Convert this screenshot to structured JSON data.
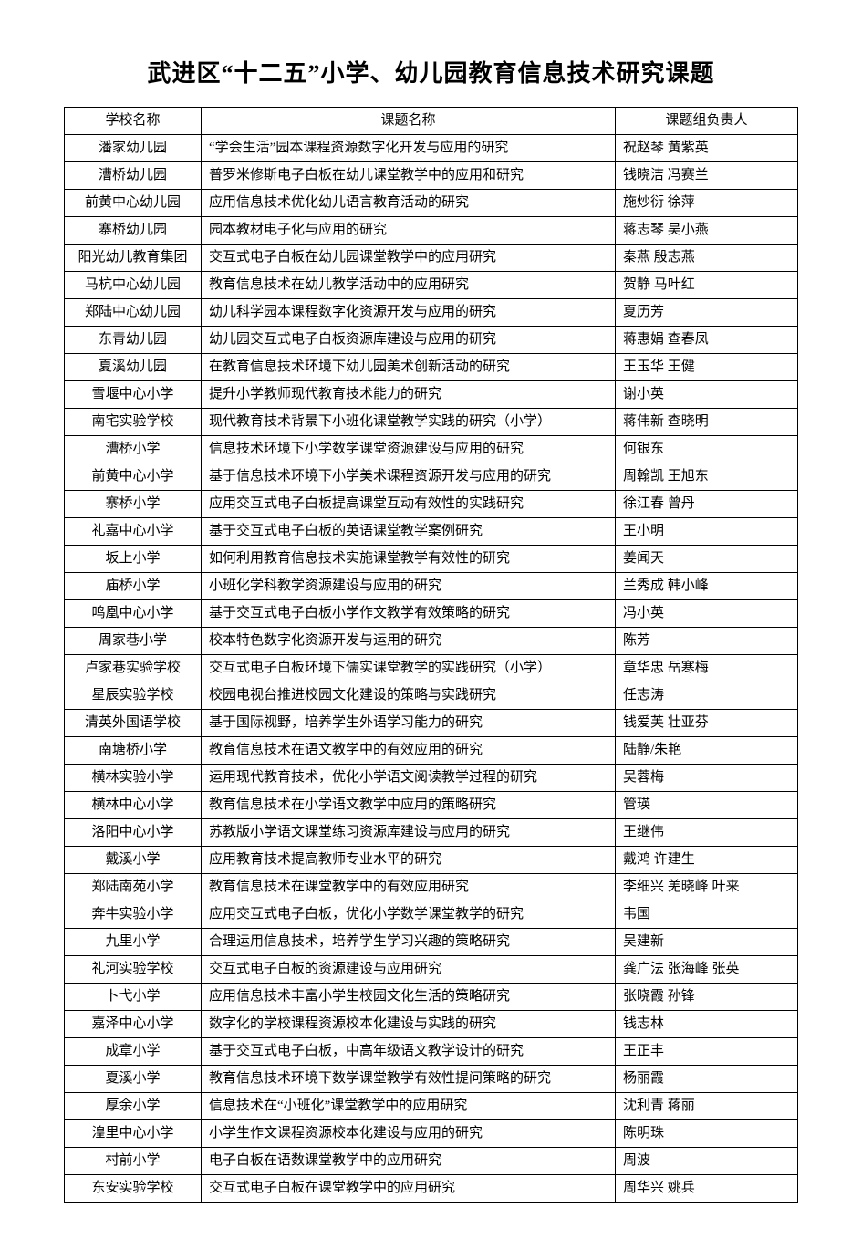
{
  "title": "武进区“十二五”小学、幼儿园教育信息技术研究课题",
  "columns": [
    "学校名称",
    "课题名称",
    "课题组负责人"
  ],
  "rows": [
    [
      "潘家幼儿园",
      "“学会生活”园本课程资源数字化开发与应用的研究",
      "祝赵琴  黄紫英"
    ],
    [
      "漕桥幼儿园",
      "普罗米修斯电子白板在幼儿课堂教学中的应用和研究",
      "钱晓洁  冯赛兰"
    ],
    [
      "前黄中心幼儿园",
      "应用信息技术优化幼儿语言教育活动的研究",
      "施炒衍  徐萍"
    ],
    [
      "寨桥幼儿园",
      "园本教材电子化与应用的研究",
      "蒋志琴  吴小燕"
    ],
    [
      "阳光幼儿教育集团",
      "交互式电子白板在幼儿园课堂教学中的应用研究",
      "秦燕  殷志燕"
    ],
    [
      "马杭中心幼儿园",
      "教育信息技术在幼儿教学活动中的应用研究",
      "贺静  马叶红"
    ],
    [
      "郑陆中心幼儿园",
      "幼儿科学园本课程数字化资源开发与应用的研究",
      "夏历芳"
    ],
    [
      "东青幼儿园",
      "幼儿园交互式电子白板资源库建设与应用的研究",
      "蒋惠娟  查春凤"
    ],
    [
      "夏溪幼儿园",
      "在教育信息技术环境下幼儿园美术创新活动的研究",
      "王玉华  王健"
    ],
    [
      "雪堰中心小学",
      "提升小学教师现代教育技术能力的研究",
      "谢小英"
    ],
    [
      "南宅实验学校",
      "现代教育技术背景下小班化课堂教学实践的研究（小学）",
      "蒋伟新  查晓明"
    ],
    [
      "漕桥小学",
      "信息技术环境下小学数学课堂资源建设与应用的研究",
      "何银东"
    ],
    [
      "前黄中心小学",
      "基于信息技术环境下小学美术课程资源开发与应用的研究",
      "周翰凯  王旭东"
    ],
    [
      "寨桥小学",
      "应用交互式电子白板提高课堂互动有效性的实践研究",
      "徐江春  曾丹"
    ],
    [
      "礼嘉中心小学",
      "基于交互式电子白板的英语课堂教学案例研究",
      "王小明"
    ],
    [
      "坂上小学",
      "如何利用教育信息技术实施课堂教学有效性的研究",
      "姜闻天"
    ],
    [
      "庙桥小学",
      "小班化学科教学资源建设与应用的研究",
      "兰秀成  韩小峰"
    ],
    [
      "鸣凰中心小学",
      "基于交互式电子白板小学作文教学有效策略的研究",
      "冯小英"
    ],
    [
      "周家巷小学",
      "校本特色数字化资源开发与运用的研究",
      "陈芳"
    ],
    [
      "卢家巷实验学校",
      "交互式电子白板环境下儒实课堂教学的实践研究（小学）",
      "章华忠  岳寒梅"
    ],
    [
      "星辰实验学校",
      "校园电视台推进校园文化建设的策略与实践研究",
      "任志涛"
    ],
    [
      "清英外国语学校",
      "基于国际视野，培养学生外语学习能力的研究",
      "钱爱芙  壮亚芬"
    ],
    [
      "南塘桥小学",
      "教育信息技术在语文教学中的有效应用的研究",
      "陆静/朱艳"
    ],
    [
      "横林实验小学",
      "运用现代教育技术，优化小学语文阅读教学过程的研究",
      "吴蓉梅"
    ],
    [
      "横林中心小学",
      "教育信息技术在小学语文教学中应用的策略研究",
      "管瑛"
    ],
    [
      "洛阳中心小学",
      "苏教版小学语文课堂练习资源库建设与应用的研究",
      "王继伟"
    ],
    [
      "戴溪小学",
      "应用教育技术提高教师专业水平的研究",
      "戴鸿  许建生"
    ],
    [
      "郑陆南苑小学",
      "教育信息技术在课堂教学中的有效应用研究",
      "李细兴  羌晓峰  叶来"
    ],
    [
      "奔牛实验小学",
      "应用交互式电子白板，优化小学数学课堂教学的研究",
      "韦国"
    ],
    [
      "九里小学",
      "合理运用信息技术，培养学生学习兴趣的策略研究",
      "吴建新"
    ],
    [
      "礼河实验学校",
      "交互式电子白板的资源建设与应用研究",
      "龚广法  张海峰  张英"
    ],
    [
      "卜弋小学",
      "应用信息技术丰富小学生校园文化生活的策略研究",
      "张晓霞  孙锋"
    ],
    [
      "嘉泽中心小学",
      "数字化的学校课程资源校本化建设与实践的研究",
      "钱志林"
    ],
    [
      "成章小学",
      "基于交互式电子白板，中高年级语文教学设计的研究",
      "王正丰"
    ],
    [
      "夏溪小学",
      "教育信息技术环境下数学课堂教学有效性提问策略的研究",
      "杨丽霞"
    ],
    [
      "厚余小学",
      "信息技术在“小班化”课堂教学中的应用研究",
      "沈利青  蒋丽"
    ],
    [
      "湟里中心小学",
      "小学生作文课程资源校本化建设与应用的研究",
      "陈明珠"
    ],
    [
      "村前小学",
      "电子白板在语数课堂教学中的应用研究",
      "周波"
    ],
    [
      "东安实验学校",
      "交互式电子白板在课堂教学中的应用研究",
      "周华兴  姚兵"
    ]
  ]
}
